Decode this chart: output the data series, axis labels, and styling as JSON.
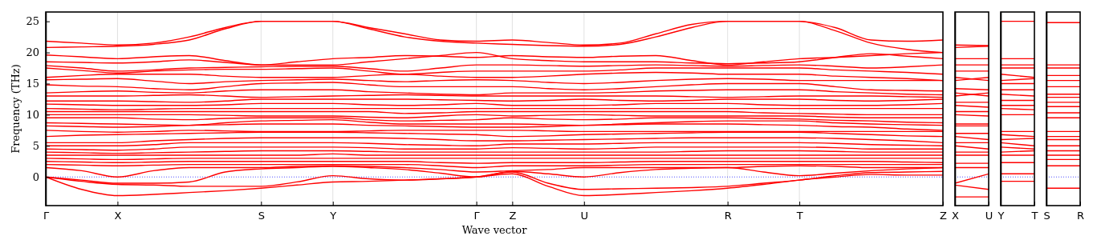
{
  "chart_data": [
    {
      "type": "line",
      "xlabel": "Wave vector",
      "ylabel": "Frequency (THz)",
      "grid": "x",
      "tick_labels": "xy",
      "categories": [
        "Γ",
        null,
        "X",
        null,
        null,
        null,
        "S",
        null,
        "Y",
        null,
        null,
        null,
        "Γ",
        "Z",
        null,
        "U",
        null,
        null,
        null,
        "R",
        null,
        "T",
        null,
        null,
        null,
        "Z"
      ],
      "ylim": [
        -4.6,
        26.5
      ],
      "yticks": [
        0,
        5,
        10,
        15,
        20,
        25
      ],
      "ref_lines": [
        {
          "axis": "y",
          "value": 0,
          "color": "#0000ff",
          "line_style": "dotted"
        }
      ],
      "series": [
        {
          "color": "#ff0000",
          "values": [
            21.8,
            21.5,
            21.2,
            21.5,
            22.5,
            24,
            25,
            25,
            25,
            24,
            23,
            22,
            21.8,
            22,
            21.6,
            21.2,
            21.5,
            23,
            24.5,
            25,
            25,
            25,
            24,
            22,
            21.8,
            22
          ]
        },
        {
          "color": "#ff0000",
          "values": [
            20.8,
            20.9,
            21,
            21.3,
            22,
            23.8,
            25,
            25,
            25,
            23.8,
            22.5,
            21.8,
            21.5,
            21.3,
            21.1,
            21,
            21.3,
            22.5,
            24,
            25,
            25,
            25,
            23.5,
            21.5,
            20.5,
            20
          ]
        },
        {
          "color": "#ff0000",
          "values": [
            19.6,
            19.3,
            19,
            19.3,
            19.5,
            18.7,
            18,
            18.5,
            19,
            19.2,
            19.5,
            19.4,
            19.2,
            19.5,
            19.3,
            19.2,
            19.4,
            19.5,
            18.7,
            18,
            18.5,
            19,
            19.2,
            19.5,
            19.8,
            20
          ]
        },
        {
          "color": "#ff0000",
          "values": [
            18.5,
            18.4,
            18.3,
            18.5,
            18.8,
            18.4,
            18,
            18,
            18,
            18.5,
            19,
            19.5,
            20,
            19,
            18.7,
            18.5,
            18.5,
            18.5,
            18.3,
            18.2,
            18.3,
            18.5,
            19.2,
            19.8,
            19.4,
            19
          ]
        },
        {
          "color": "#ff0000",
          "values": [
            17.9,
            17.5,
            17,
            17.2,
            17.5,
            17.6,
            17.7,
            17.8,
            17.8,
            17.4,
            17,
            17.5,
            18,
            18,
            17.9,
            17.8,
            17.9,
            18,
            17.9,
            17.8,
            17.9,
            18,
            17.8,
            17.5,
            17.7,
            18
          ]
        },
        {
          "color": "#ff0000",
          "values": [
            17.5,
            17.1,
            16.7,
            17,
            17.2,
            17.3,
            17.3,
            17.4,
            17.5,
            17,
            16.5,
            16.8,
            17,
            17,
            17,
            17,
            17.2,
            17.5,
            17.5,
            17.5,
            17.5,
            17.5,
            17.2,
            17,
            16.8,
            16.5
          ]
        },
        {
          "color": "#ff0000",
          "values": [
            16,
            16.3,
            16.5,
            16.5,
            16.5,
            16.2,
            16,
            16,
            16,
            16.3,
            16.5,
            16.2,
            16,
            16,
            16.2,
            16.5,
            16.7,
            16.8,
            16.7,
            16.5,
            16.5,
            16.5,
            16.2,
            16,
            15.8,
            15.5
          ]
        },
        {
          "color": "#ff0000",
          "values": [
            15.6,
            15.7,
            15.8,
            15.4,
            15,
            15.3,
            15.5,
            15.6,
            15.7,
            15.5,
            15.3,
            15.5,
            15.6,
            15.5,
            15.2,
            15,
            15.2,
            15.5,
            15.7,
            15.8,
            15.7,
            15.5,
            15.5,
            15.5,
            15.5,
            15.5
          ]
        },
        {
          "color": "#ff0000",
          "values": [
            14.8,
            14.6,
            14.5,
            14.2,
            14,
            14.5,
            15,
            15.1,
            15.2,
            14.8,
            14.5,
            14.5,
            14.5,
            14.5,
            14.2,
            14,
            14.2,
            14.5,
            14.8,
            15,
            15,
            15,
            14.5,
            14,
            13.9,
            13.8
          ]
        },
        {
          "color": "#ff0000",
          "values": [
            13.5,
            13.7,
            13.8,
            13.6,
            13.5,
            13.8,
            14,
            14,
            14,
            13.7,
            13.5,
            13.3,
            13.2,
            13.5,
            13.5,
            13.5,
            13.6,
            13.8,
            13.9,
            14,
            14,
            14,
            13.7,
            13.5,
            13.3,
            13.2
          ]
        },
        {
          "color": "#ff0000",
          "values": [
            13,
            13,
            13,
            13.1,
            13.2,
            13,
            12.8,
            12.9,
            13,
            13.1,
            13.2,
            13.1,
            13,
            13,
            13,
            13,
            13,
            13,
            12.9,
            12.8,
            12.9,
            13,
            13,
            13,
            12.9,
            12.8
          ]
        },
        {
          "color": "#ff0000",
          "values": [
            12.2,
            12.2,
            12.2,
            12.1,
            12,
            12.2,
            12.5,
            12.5,
            12.5,
            12.5,
            12.5,
            12.4,
            12.3,
            12.2,
            12.3,
            12.5,
            12.3,
            12.2,
            12.3,
            12.5,
            12.5,
            12.5,
            12.3,
            12.2,
            12.3,
            12.5
          ]
        },
        {
          "color": "#ff0000",
          "values": [
            11.7,
            11.6,
            11.5,
            11.5,
            11.5,
            11.6,
            11.8,
            11.8,
            11.8,
            11.6,
            11.5,
            11.6,
            11.8,
            11.5,
            11.5,
            11.5,
            11.6,
            11.8,
            11.8,
            11.8,
            11.6,
            11.5,
            11.5,
            11.5,
            11.6,
            11.8
          ]
        },
        {
          "color": "#ff0000",
          "values": [
            11,
            10.9,
            10.8,
            10.9,
            11,
            11,
            11,
            11,
            11,
            11,
            11,
            11,
            11,
            11,
            11,
            11,
            11,
            11,
            11,
            11,
            11,
            11,
            11,
            11,
            11,
            11
          ]
        },
        {
          "color": "#ff0000",
          "values": [
            10.5,
            10.5,
            10.5,
            10.5,
            10.5,
            10.5,
            10.5,
            10.5,
            10.5,
            10.5,
            10.2,
            10.3,
            10.5,
            10.5,
            10.5,
            10.5,
            10.5,
            10.5,
            10.5,
            10.5,
            10.3,
            10.2,
            10.1,
            10,
            10,
            10
          ]
        },
        {
          "color": "#ff0000",
          "values": [
            10,
            10,
            10,
            10,
            10,
            9.9,
            9.8,
            9.8,
            9.8,
            9.6,
            9.5,
            9.8,
            10,
            9.8,
            9.9,
            10,
            9.9,
            9.8,
            9.8,
            9.8,
            9.8,
            9.8,
            9.6,
            9.5,
            9.5,
            9.5
          ]
        },
        {
          "color": "#ff0000",
          "values": [
            9.5,
            9.5,
            9.5,
            9.3,
            9.2,
            9.4,
            9.5,
            9.5,
            9.5,
            9.2,
            9,
            9.1,
            9.2,
            9.5,
            9.3,
            9.2,
            9.3,
            9.5,
            9.5,
            9.5,
            9.4,
            9.3,
            9.1,
            9,
            8.8,
            8.7
          ]
        },
        {
          "color": "#ff0000",
          "values": [
            8.7,
            8.6,
            8.5,
            8.4,
            8.3,
            8.7,
            9,
            9.1,
            9.2,
            8.8,
            8.5,
            8.5,
            8.5,
            8.5,
            8.4,
            8.3,
            8.5,
            8.7,
            8.9,
            9,
            9,
            9,
            8.7,
            8.5,
            8.4,
            8.3
          ]
        },
        {
          "color": "#ff0000",
          "values": [
            8.2,
            8.1,
            8,
            8.1,
            8.3,
            8.4,
            8.5,
            8.5,
            8.5,
            8.3,
            8.2,
            8.1,
            8,
            8,
            8.1,
            8.3,
            8.4,
            8.5,
            8.5,
            8.5,
            8.4,
            8.3,
            8.1,
            8,
            7.7,
            7.5
          ]
        },
        {
          "color": "#ff0000",
          "values": [
            7.5,
            7.3,
            7.2,
            7.3,
            7.5,
            7.4,
            7.3,
            7.3,
            7.3,
            7.4,
            7.5,
            7.5,
            7.5,
            7.5,
            7.4,
            7.3,
            7.3,
            7.3,
            7.3,
            7.3,
            7.3,
            7.3,
            7.3,
            7.3,
            7.3,
            7.3
          ]
        },
        {
          "color": "#ff0000",
          "values": [
            6.5,
            6.7,
            6.8,
            6.9,
            7,
            7.1,
            7.2,
            7.2,
            7.2,
            7.1,
            7,
            6.9,
            6.8,
            6.5,
            6.6,
            6.8,
            6.9,
            7,
            7.1,
            7.2,
            7.2,
            7.2,
            7,
            6.8,
            6.6,
            6.5
          ]
        },
        {
          "color": "#ff0000",
          "values": [
            5.5,
            5.5,
            5.5,
            5.8,
            6,
            6.2,
            6.3,
            6.3,
            6.3,
            6.3,
            6.2,
            6,
            5.8,
            5.8,
            5.9,
            6,
            6.1,
            6.2,
            6.3,
            6.3,
            6.3,
            6.3,
            6.2,
            6,
            5.8,
            5.5
          ]
        },
        {
          "color": "#ff0000",
          "values": [
            5,
            5,
            5,
            5.2,
            5.5,
            5.5,
            5.5,
            5.5,
            5.5,
            5.4,
            5.2,
            5.1,
            5,
            5.3,
            5.3,
            5.3,
            5.4,
            5.5,
            5.5,
            5.5,
            5.5,
            5.5,
            5.4,
            5.2,
            5.1,
            5
          ]
        },
        {
          "color": "#ff0000",
          "values": [
            4.5,
            4.4,
            4.3,
            4.5,
            4.8,
            4.8,
            4.8,
            4.8,
            4.8,
            4.7,
            4.5,
            4.5,
            4.5,
            4.7,
            4.6,
            4.5,
            4.6,
            4.8,
            4.8,
            4.8,
            4.8,
            4.8,
            4.7,
            4.5,
            4.5,
            4.5
          ]
        },
        {
          "color": "#ff0000",
          "values": [
            4,
            3.9,
            3.8,
            3.9,
            4,
            4.1,
            4.2,
            4.2,
            4.2,
            4.1,
            4,
            4,
            4,
            4,
            4,
            4,
            4,
            4,
            4.1,
            4.2,
            4.2,
            4.2,
            4.1,
            4,
            4,
            4
          ]
        },
        {
          "color": "#ff0000",
          "values": [
            3.5,
            3.5,
            3.5,
            3.5,
            3.5,
            3.5,
            3.5,
            3.5,
            3.7,
            3.5,
            3.5,
            3.5,
            3.5,
            3.5,
            3.5,
            3.5,
            3.5,
            3.5,
            3.5,
            3.5,
            3.5,
            3.5,
            3.5,
            3.5,
            3.5,
            3.5
          ]
        },
        {
          "color": "#ff0000",
          "values": [
            3,
            2.9,
            2.8,
            2.9,
            3,
            3,
            3,
            3,
            3,
            3,
            3,
            3,
            3,
            3,
            3,
            3,
            3,
            3,
            3,
            3,
            3,
            3,
            3,
            3,
            3,
            3
          ]
        },
        {
          "color": "#ff0000",
          "values": [
            2.5,
            2.4,
            2.3,
            2.4,
            2.5,
            2.5,
            2.5,
            2.5,
            2.5,
            2.5,
            2.5,
            2.3,
            2.2,
            2.3,
            2.3,
            2.3,
            2.4,
            2.5,
            2.5,
            2.5,
            2.5,
            2.5,
            2.5,
            2.5,
            2.4,
            2.3
          ]
        },
        {
          "color": "#ff0000",
          "values": [
            2,
            1.9,
            1.8,
            1.9,
            2,
            2,
            2,
            2,
            2,
            2,
            2,
            1.8,
            1.5,
            1.8,
            1.8,
            1.8,
            1.9,
            2,
            2,
            2,
            2,
            2,
            2,
            2,
            2,
            2
          ]
        },
        {
          "color": "#ff0000",
          "values": [
            1.5,
            1,
            0,
            1,
            1.5,
            1.5,
            1.5,
            1.7,
            1.8,
            1.7,
            1.5,
            1.2,
            0.8,
            1,
            1.2,
            1.5,
            1.5,
            1.5,
            1.5,
            1.5,
            1.7,
            1.8,
            1.7,
            1.5,
            1.5,
            1.5
          ]
        },
        {
          "color": "#ff0000",
          "values": [
            0,
            -0.5,
            -1,
            -1,
            -0.8,
            0.8,
            1.3,
            1.5,
            1.7,
            1.5,
            1.2,
            0.6,
            0,
            0.9,
            0.5,
            0,
            0.7,
            1.2,
            1.4,
            1.5,
            0.8,
            0.2,
            0.6,
            1,
            1.3,
            1.5
          ]
        },
        {
          "color": "#ff0000",
          "values": [
            0,
            -0.7,
            -1.2,
            -1.3,
            -1.5,
            -1.5,
            -1.5,
            -0.8,
            0.2,
            -0.3,
            -0.5,
            -0.3,
            0,
            0.8,
            -1,
            -2,
            -1.9,
            -1.8,
            -1.7,
            -1.5,
            -1,
            -0.5,
            0.2,
            0.7,
            0.8,
            0.9
          ]
        },
        {
          "color": "#ff0000",
          "values": [
            0,
            -2,
            -3,
            -2.8,
            -2.5,
            -2.2,
            -1.8,
            -1.3,
            -0.8,
            -0.7,
            -0.5,
            -0.3,
            0,
            0.5,
            -1.5,
            -3,
            -2.8,
            -2.5,
            -2.2,
            -1.8,
            -1.2,
            -0.5,
            0,
            0.4,
            0.3,
            0.3
          ]
        }
      ]
    },
    {
      "type": "line",
      "tick_labels": "x",
      "categories": [
        "X",
        "U"
      ],
      "ylim": [
        -4.6,
        26.5
      ],
      "ref_lines": [
        {
          "axis": "y",
          "value": 0,
          "color": "#0000ff",
          "line_style": "dotted"
        }
      ],
      "series": [
        {
          "color": "#ff0000",
          "values": [
            21.2,
            21.1
          ]
        },
        {
          "color": "#ff0000",
          "values": [
            20.8,
            21
          ]
        },
        {
          "color": "#ff0000",
          "values": [
            19,
            19
          ]
        },
        {
          "color": "#ff0000",
          "values": [
            18,
            18
          ]
        },
        {
          "color": "#ff0000",
          "values": [
            17,
            17
          ]
        },
        {
          "color": "#ff0000",
          "values": [
            16,
            15.5
          ]
        },
        {
          "color": "#ff0000",
          "values": [
            15.5,
            16
          ]
        },
        {
          "color": "#ff0000",
          "values": [
            14.2,
            14
          ]
        },
        {
          "color": "#ff0000",
          "values": [
            13.5,
            13
          ]
        },
        {
          "color": "#ff0000",
          "values": [
            13,
            13.5
          ]
        },
        {
          "color": "#ff0000",
          "values": [
            12,
            12
          ]
        },
        {
          "color": "#ff0000",
          "values": [
            11.5,
            11.2
          ]
        },
        {
          "color": "#ff0000",
          "values": [
            10.5,
            10.5
          ]
        },
        {
          "color": "#ff0000",
          "values": [
            10,
            9.8
          ]
        },
        {
          "color": "#ff0000",
          "values": [
            8.5,
            8.5
          ]
        },
        {
          "color": "#ff0000",
          "values": [
            8.2,
            8.2
          ]
        },
        {
          "color": "#ff0000",
          "values": [
            7,
            7
          ]
        },
        {
          "color": "#ff0000",
          "values": [
            6.5,
            6
          ]
        },
        {
          "color": "#ff0000",
          "values": [
            5.5,
            5.5
          ]
        },
        {
          "color": "#ff0000",
          "values": [
            5,
            4.5
          ]
        },
        {
          "color": "#ff0000",
          "values": [
            4,
            4
          ]
        },
        {
          "color": "#ff0000",
          "values": [
            3.5,
            3.5
          ]
        },
        {
          "color": "#ff0000",
          "values": [
            2.2,
            2.2
          ]
        },
        {
          "color": "#ff0000",
          "values": [
            1.5,
            1.5
          ]
        },
        {
          "color": "#ff0000",
          "values": [
            -1,
            0.5
          ]
        },
        {
          "color": "#ff0000",
          "values": [
            -1.3,
            -2
          ]
        },
        {
          "color": "#ff0000",
          "values": [
            -3.2,
            -3.2
          ]
        }
      ]
    },
    {
      "type": "line",
      "tick_labels": "x",
      "categories": [
        "Y",
        "T"
      ],
      "ylim": [
        -4.6,
        26.5
      ],
      "ref_lines": [
        {
          "axis": "y",
          "value": 0,
          "color": "#0000ff",
          "line_style": "dotted"
        }
      ],
      "series": [
        {
          "color": "#ff0000",
          "values": [
            25,
            25
          ]
        },
        {
          "color": "#ff0000",
          "values": [
            19,
            19
          ]
        },
        {
          "color": "#ff0000",
          "values": [
            18,
            18
          ]
        },
        {
          "color": "#ff0000",
          "values": [
            17.5,
            17.5
          ]
        },
        {
          "color": "#ff0000",
          "values": [
            16.5,
            16
          ]
        },
        {
          "color": "#ff0000",
          "values": [
            15.5,
            15.8
          ]
        },
        {
          "color": "#ff0000",
          "values": [
            15,
            15
          ]
        },
        {
          "color": "#ff0000",
          "values": [
            14,
            14
          ]
        },
        {
          "color": "#ff0000",
          "values": [
            13.3,
            13
          ]
        },
        {
          "color": "#ff0000",
          "values": [
            12.3,
            12.3
          ]
        },
        {
          "color": "#ff0000",
          "values": [
            11.5,
            11.5
          ]
        },
        {
          "color": "#ff0000",
          "values": [
            11,
            10.8
          ]
        },
        {
          "color": "#ff0000",
          "values": [
            10,
            10
          ]
        },
        {
          "color": "#ff0000",
          "values": [
            7.3,
            7.3
          ]
        },
        {
          "color": "#ff0000",
          "values": [
            6.8,
            6.5
          ]
        },
        {
          "color": "#ff0000",
          "values": [
            6,
            6.2
          ]
        },
        {
          "color": "#ff0000",
          "values": [
            5.5,
            5
          ]
        },
        {
          "color": "#ff0000",
          "values": [
            4.8,
            4.5
          ]
        },
        {
          "color": "#ff0000",
          "values": [
            4,
            4.2
          ]
        },
        {
          "color": "#ff0000",
          "values": [
            3.5,
            3.5
          ]
        },
        {
          "color": "#ff0000",
          "values": [
            2.3,
            2.3
          ]
        },
        {
          "color": "#ff0000",
          "values": [
            0.5,
            0.5
          ]
        },
        {
          "color": "#ff0000",
          "values": [
            -0.7,
            -0.7
          ]
        }
      ]
    },
    {
      "type": "line",
      "tick_labels": "x",
      "categories": [
        "S",
        "R"
      ],
      "ylim": [
        -4.6,
        26.5
      ],
      "ref_lines": [
        {
          "axis": "y",
          "value": 0,
          "color": "#0000ff",
          "line_style": "dotted"
        }
      ],
      "series": [
        {
          "color": "#ff0000",
          "values": [
            24.8,
            24.8
          ]
        },
        {
          "color": "#ff0000",
          "values": [
            18,
            18
          ]
        },
        {
          "color": "#ff0000",
          "values": [
            17.5,
            17.5
          ]
        },
        {
          "color": "#ff0000",
          "values": [
            16.3,
            16.3
          ]
        },
        {
          "color": "#ff0000",
          "values": [
            15.5,
            15.5
          ]
        },
        {
          "color": "#ff0000",
          "values": [
            14.5,
            14.5
          ]
        },
        {
          "color": "#ff0000",
          "values": [
            13.3,
            13.3
          ]
        },
        {
          "color": "#ff0000",
          "values": [
            12.8,
            12.8
          ]
        },
        {
          "color": "#ff0000",
          "values": [
            12,
            12
          ]
        },
        {
          "color": "#ff0000",
          "values": [
            11.3,
            11.3
          ]
        },
        {
          "color": "#ff0000",
          "values": [
            10.3,
            10.3
          ]
        },
        {
          "color": "#ff0000",
          "values": [
            9.5,
            9.5
          ]
        },
        {
          "color": "#ff0000",
          "values": [
            7.3,
            7.3
          ]
        },
        {
          "color": "#ff0000",
          "values": [
            6.5,
            6.5
          ]
        },
        {
          "color": "#ff0000",
          "values": [
            6,
            6
          ]
        },
        {
          "color": "#ff0000",
          "values": [
            5,
            5
          ]
        },
        {
          "color": "#ff0000",
          "values": [
            4.2,
            4.2
          ]
        },
        {
          "color": "#ff0000",
          "values": [
            3.5,
            3.5
          ]
        },
        {
          "color": "#ff0000",
          "values": [
            2.8,
            2.8
          ]
        },
        {
          "color": "#ff0000",
          "values": [
            1.8,
            1.8
          ]
        },
        {
          "color": "#ff0000",
          "values": [
            -1.8,
            -1.8
          ]
        }
      ]
    }
  ]
}
